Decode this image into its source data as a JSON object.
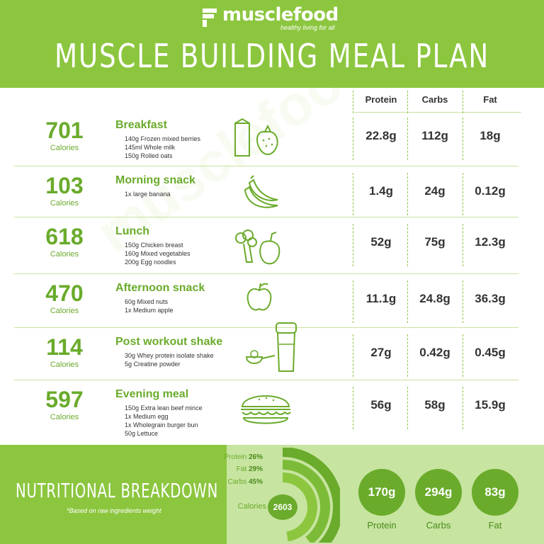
{
  "brand": {
    "name": "musclefood",
    "tagline": "healthy living for all"
  },
  "title": "MUSCLE BUILDING MEAL PLAN",
  "columns": [
    "Protein",
    "Carbs",
    "Fat"
  ],
  "calories_label": "Calories",
  "meals": [
    {
      "calories": "701",
      "name": "Breakfast",
      "ingredients": [
        "140g Frozen mixed berries",
        "145ml Whole milk",
        "150g Rolled oats"
      ],
      "protein": "22.8g",
      "carbs": "112g",
      "fat": "18g",
      "icon": "milk-strawberry-icon"
    },
    {
      "calories": "103",
      "name": "Morning snack",
      "ingredients": [
        "1x large banana"
      ],
      "protein": "1.4g",
      "carbs": "24g",
      "fat": "0.12g",
      "icon": "banana-icon"
    },
    {
      "calories": "618",
      "name": "Lunch",
      "ingredients": [
        "150g Chicken breast",
        "160g Mixed vegetables",
        "200g Egg noodles"
      ],
      "protein": "52g",
      "carbs": "75g",
      "fat": "12.3g",
      "icon": "broccoli-pepper-icon"
    },
    {
      "calories": "470",
      "name": "Afternoon snack",
      "ingredients": [
        "60g Mixed nuts",
        "1x Medium apple"
      ],
      "protein": "11.1g",
      "carbs": "24.8g",
      "fat": "36.3g",
      "icon": "apple-icon"
    },
    {
      "calories": "114",
      "name": "Post workout shake",
      "ingredients": [
        "30g Whey protein isolate shake",
        "5g Creatine powder"
      ],
      "protein": "27g",
      "carbs": "0.42g",
      "fat": "0.45g",
      "icon": "shaker-scoop-icon"
    },
    {
      "calories": "597",
      "name": "Evening meal",
      "ingredients": [
        "150g Extra lean beef mince",
        "1x Medium egg",
        "1x Wholegrain burger bun",
        "50g Lettuce"
      ],
      "protein": "56g",
      "carbs": "58g",
      "fat": "15.9g",
      "icon": "burger-icon"
    }
  ],
  "breakdown": {
    "title": "NUTRITIONAL BREAKDOWN",
    "note": "*Based on raw ingredients weight",
    "donut": [
      {
        "label": "Protein",
        "pct": "26%",
        "value": 26
      },
      {
        "label": "Fat",
        "pct": "29%",
        "value": 29
      },
      {
        "label": "Carbs",
        "pct": "45%",
        "value": 45
      }
    ],
    "calories_label": "Calories",
    "calories_total": "2603",
    "totals": [
      {
        "value": "170g",
        "label": "Protein"
      },
      {
        "value": "294g",
        "label": "Carbs"
      },
      {
        "value": "83g",
        "label": "Fat"
      }
    ]
  },
  "colors": {
    "primary": "#8cc63f",
    "dark_green": "#6aab2b",
    "light_green": "#c7e4a0",
    "text": "#333333"
  }
}
